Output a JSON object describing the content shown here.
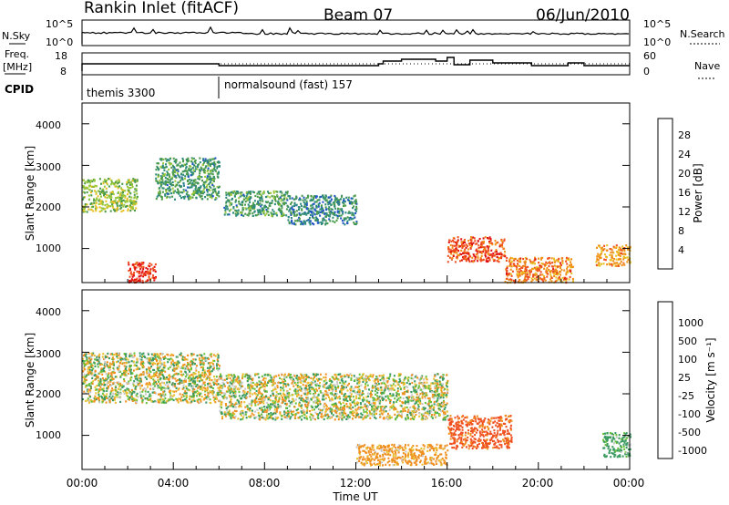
{
  "header": {
    "station": "Rankin Inlet (fitACF)",
    "beam": "Beam 07",
    "date": "06/Jun/2010"
  },
  "noise_panel": {
    "left_label": "N.Sky",
    "left_ticks": [
      "10^5",
      "10^0"
    ],
    "right_ticks": [
      "10^5",
      "10^0"
    ],
    "right_label": "N.Search"
  },
  "freq_panel": {
    "left_label_1": "Freq.",
    "left_label_2": "[MHz]",
    "left_ticks": [
      "18",
      "8"
    ],
    "right_ticks": [
      "60",
      "0"
    ],
    "right_label": "Nave"
  },
  "cpid_panel": {
    "label": "CPID",
    "segments": [
      {
        "name": "themis 3300",
        "start_h": 0,
        "end_h": 6
      },
      {
        "name": "normalsound (fast) 157",
        "start_h": 6,
        "end_h": 24
      }
    ]
  },
  "power_panel": {
    "ylabel": "Slant Range [km]",
    "yticks": [
      "4000",
      "3000",
      "2000",
      "1000"
    ],
    "colorbar_label": "Power [dB]",
    "colorbar_ticks": [
      "28",
      "24",
      "20",
      "16",
      "12",
      "8",
      "4"
    ],
    "colors": [
      "#1a1ad6",
      "#2255c8",
      "#2e8a7a",
      "#4a9a4a",
      "#9ac83a",
      "#e8c020",
      "#f0901a",
      "#f05020",
      "#e01010"
    ]
  },
  "velocity_panel": {
    "ylabel": "Slant Range [km]",
    "yticks": [
      "4000",
      "3000",
      "2000",
      "1000"
    ],
    "colorbar_label": "Velocity [m s⁻¹]",
    "colorbar_ticks": [
      "1000",
      "500",
      "100",
      "25",
      "-25",
      "-100",
      "-500",
      "-1000"
    ],
    "colors": [
      "#1a2aa8",
      "#2070b0",
      "#3a9a60",
      "#6ac03a",
      "#c8c8c8",
      "#e8c030",
      "#f09020",
      "#f05020",
      "#e01010"
    ]
  },
  "xaxis": {
    "label": "Time UT",
    "ticks": [
      "00:00",
      "04:00",
      "08:00",
      "12:00",
      "16:00",
      "20:00",
      "00:00"
    ]
  },
  "chart_data": {
    "type": "heatmap",
    "x_range_hours": [
      0,
      24
    ],
    "y_range_km": [
      180,
      4500
    ],
    "power_regions_db": [
      {
        "t": [
          0.0,
          2.4
        ],
        "range_km": [
          1900,
          2700
        ],
        "power_db": 16
      },
      {
        "t": [
          3.2,
          6.0
        ],
        "range_km": [
          2200,
          3200
        ],
        "power_db": 12
      },
      {
        "t": [
          6.2,
          9.0
        ],
        "range_km": [
          1800,
          2400
        ],
        "power_db": 12
      },
      {
        "t": [
          9.0,
          12.0
        ],
        "range_km": [
          1600,
          2300
        ],
        "power_db": 10
      },
      {
        "t": [
          2.0,
          3.2
        ],
        "range_km": [
          200,
          700
        ],
        "power_db": 28
      },
      {
        "t": [
          16.0,
          18.5
        ],
        "range_km": [
          700,
          1300
        ],
        "power_db": 26
      },
      {
        "t": [
          18.5,
          21.5
        ],
        "range_km": [
          200,
          800
        ],
        "power_db": 24
      },
      {
        "t": [
          22.5,
          24.0
        ],
        "range_km": [
          600,
          1100
        ],
        "power_db": 22
      }
    ],
    "velocity_regions_ms": [
      {
        "t": [
          0.0,
          6.0
        ],
        "range_km": [
          1800,
          3000
        ],
        "velocity": 0
      },
      {
        "t": [
          6.0,
          16.0
        ],
        "range_km": [
          1400,
          2500
        ],
        "velocity": 0
      },
      {
        "t": [
          16.0,
          18.8
        ],
        "range_km": [
          700,
          1500
        ],
        "velocity": -600
      },
      {
        "t": [
          12.0,
          16.0
        ],
        "range_km": [
          300,
          800
        ],
        "velocity": -200
      },
      {
        "t": [
          22.8,
          24.0
        ],
        "range_km": [
          500,
          1100
        ],
        "velocity": 200
      }
    ]
  }
}
